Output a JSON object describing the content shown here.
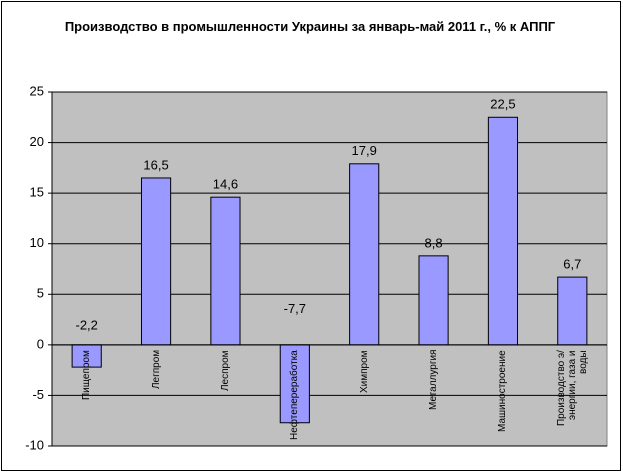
{
  "chart_data": {
    "type": "bar",
    "title": "Производство в промышленности Украины за январь-май 2011 г., % к АППГ",
    "categories": [
      "Пищепром",
      "Легпром",
      "Леспром",
      "Нефтепереработка",
      "Химпром",
      "Металлургия",
      "Машиностроение",
      "Производство э/энергии, газа и воды"
    ],
    "values": [
      -2.2,
      16.5,
      14.6,
      -7.7,
      17.9,
      8.8,
      22.5,
      6.7
    ],
    "value_labels": [
      "-2,2",
      "16,5",
      "14,6",
      "-7,7",
      "17,9",
      "8,8",
      "22,5",
      "6,7"
    ],
    "color": "#9999ff",
    "ylim": [
      -10,
      25
    ],
    "yticks": [
      -10,
      -5,
      0,
      5,
      10,
      15,
      20,
      25
    ],
    "grid": true
  }
}
